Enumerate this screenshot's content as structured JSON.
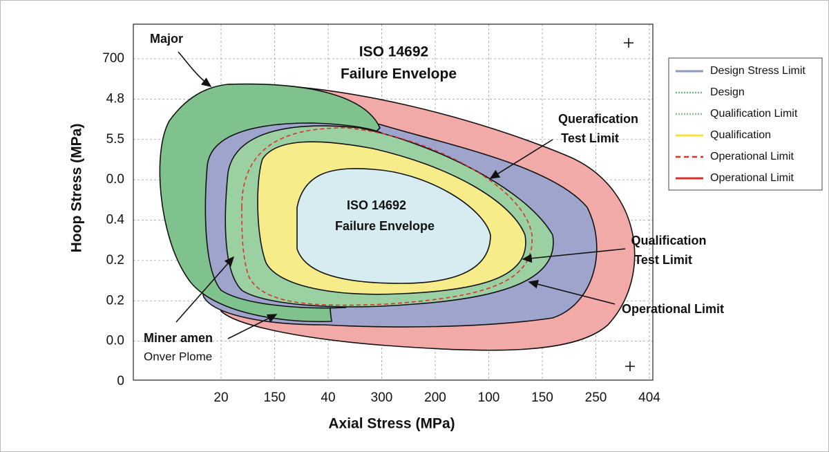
{
  "chart_data": {
    "type": "envelope",
    "title": [
      "ISO 14692",
      "Failure Envelope"
    ],
    "x_label": "Axial Stress (MPa)",
    "y_label": "Hoop Stress (MPa)",
    "x_categories": [
      "20",
      "150",
      "40",
      "300",
      "200",
      "100",
      "150",
      "250",
      "404"
    ],
    "y_categories": [
      "700",
      "4.8",
      "5.5",
      "0.0",
      "0.4",
      "0.2",
      "0.2",
      "0.0",
      "0"
    ],
    "grid": true,
    "legend": "right",
    "series": [
      {
        "name": "Design Stress Limit",
        "color": "#8f97c6",
        "style": "solid"
      },
      {
        "name": "Design",
        "color": "#6dbb7c",
        "style": "dotted"
      },
      {
        "name": "Qualification Limit",
        "color": "#7cc08a",
        "style": "dotted"
      },
      {
        "name": "Qualification",
        "color": "#f3e03c",
        "style": "solid"
      },
      {
        "name": "Operational Limit",
        "color": "#d9302c",
        "style": "dashed"
      },
      {
        "name": "Operational Limit",
        "color": "#d9302c",
        "style": "solid"
      }
    ],
    "annotations": {
      "inner": [
        "ISO 14692",
        "Failure Envelope"
      ],
      "major": "Major",
      "querafication": [
        "Querafication",
        "Test Limit"
      ],
      "qualification": [
        "Qualification",
        "Test Limit"
      ],
      "operational": "Operational Limit",
      "miner": [
        "Miner amen",
        "Onver Plome"
      ]
    }
  }
}
